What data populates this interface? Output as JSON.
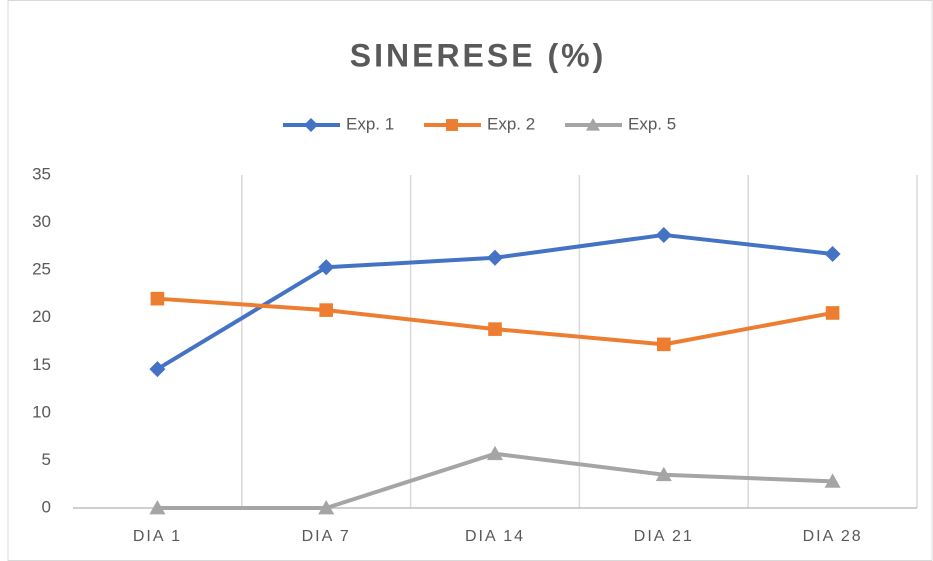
{
  "chart_data": {
    "type": "line",
    "title": "SINERESE (%)",
    "categories": [
      "DIA 1",
      "DIA 7",
      "DIA 14",
      "DIA 21",
      "DIA 28"
    ],
    "series": [
      {
        "name": "Exp. 1",
        "color": "#4472c4",
        "marker": "diamond",
        "values": [
          14.6,
          25.3,
          26.3,
          28.7,
          26.7
        ]
      },
      {
        "name": "Exp. 2",
        "color": "#ed7d31",
        "marker": "square",
        "values": [
          22.0,
          20.8,
          18.8,
          17.2,
          20.5
        ]
      },
      {
        "name": "Exp. 5",
        "color": "#a5a5a5",
        "marker": "triangle",
        "values": [
          0,
          0,
          5.7,
          3.5,
          2.8
        ]
      }
    ],
    "ylim": [
      0,
      35
    ],
    "yticks": [
      0,
      5,
      10,
      15,
      20,
      25,
      30,
      35
    ],
    "grid": "x",
    "legend": "top"
  }
}
